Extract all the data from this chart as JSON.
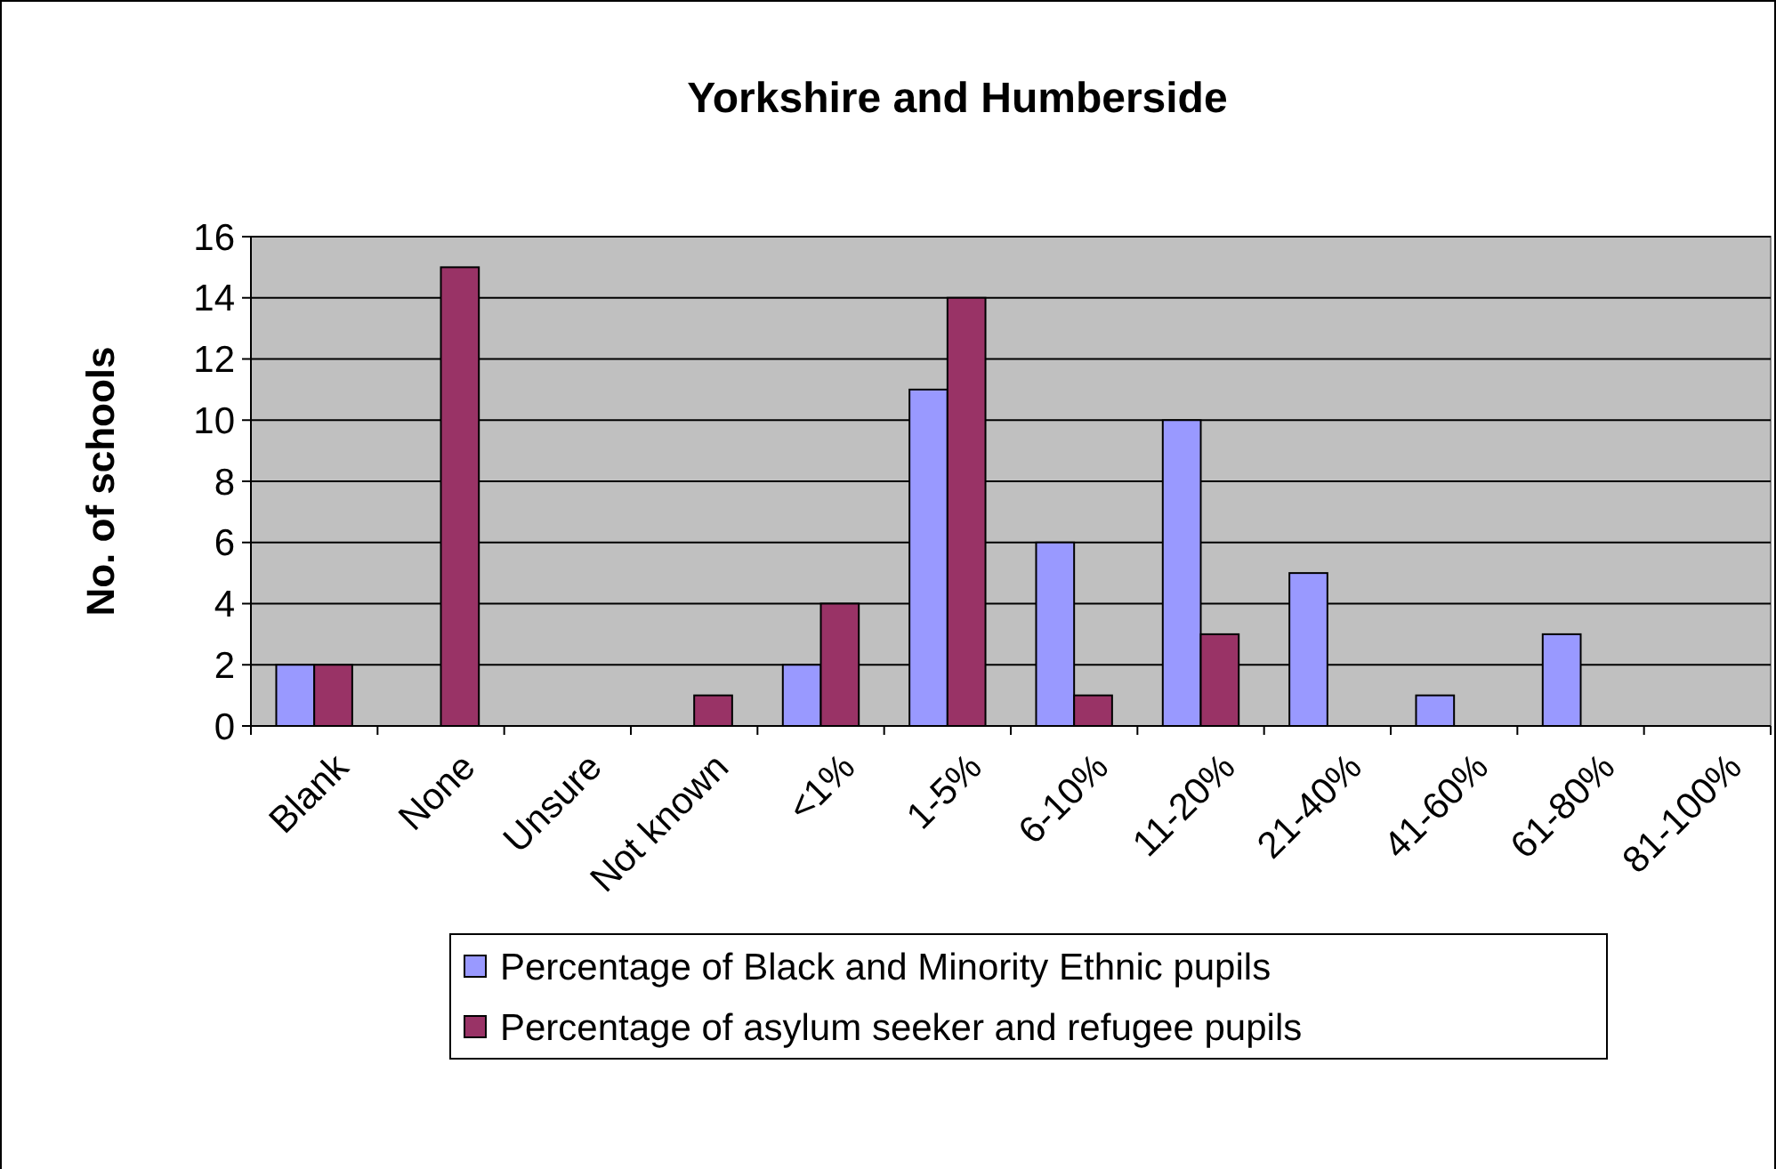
{
  "chart_data": {
    "type": "bar",
    "title": "Yorkshire and Humberside",
    "ylabel": "No. of schools",
    "categories": [
      "Blank",
      "None",
      "Unsure",
      "Not known",
      "<1%",
      "1-5%",
      "6-10%",
      "11-20%",
      "21-40%",
      "41-60%",
      "61-80%",
      "81-100%"
    ],
    "series": [
      {
        "name": "Percentage of Black and Minority Ethnic pupils",
        "color": "#9999ff",
        "values": [
          2,
          0,
          0,
          0,
          2,
          11,
          6,
          10,
          5,
          1,
          3,
          0
        ]
      },
      {
        "name": "Percentage of asylum seeker and refugee pupils",
        "color": "#993366",
        "values": [
          2,
          15,
          0,
          1,
          4,
          14,
          1,
          3,
          0,
          0,
          0,
          0
        ]
      }
    ],
    "ylim": [
      0,
      16
    ],
    "yticks": [
      0,
      2,
      4,
      6,
      8,
      10,
      12,
      14,
      16
    ],
    "grid": "y",
    "legend": "bottom"
  }
}
